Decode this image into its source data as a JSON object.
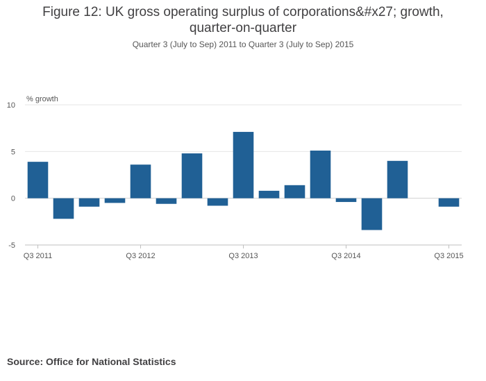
{
  "title_line1": "Figure 12: UK gross operating surplus of corporations&#x27; growth,",
  "title_line2": "quarter-on-quarter",
  "subtitle": "Quarter 3 (July to Sep) 2011 to Quarter 3 (July to Sep) 2015",
  "source": "Source: Office for National Statistics",
  "colors": {
    "bar": "#206095",
    "grid": "#e6e6e6",
    "axis": "#bfbfbf"
  },
  "chart_data": {
    "type": "bar",
    "ylabel": "% growth",
    "xlabel": "",
    "ylim": [
      -5,
      10
    ],
    "yticks": [
      -5,
      0,
      5,
      10
    ],
    "grid": true,
    "categories": [
      "Q3 2011",
      "Q4 2011",
      "Q1 2012",
      "Q2 2012",
      "Q3 2012",
      "Q4 2012",
      "Q1 2013",
      "Q2 2013",
      "Q3 2013",
      "Q4 2013",
      "Q1 2014",
      "Q2 2014",
      "Q3 2014",
      "Q4 2014",
      "Q1 2015",
      "Q2 2015",
      "Q3 2015"
    ],
    "tick_labels": [
      "Q3 2011",
      "Q3 2012",
      "Q3 2013",
      "Q3 2014",
      "Q3 2015"
    ],
    "series": [
      {
        "name": "% growth",
        "values": [
          3.9,
          -2.2,
          -0.9,
          -0.5,
          3.6,
          -0.6,
          4.8,
          -0.8,
          7.1,
          0.8,
          1.4,
          5.1,
          -0.4,
          -3.4,
          4.0,
          0.0,
          -0.9
        ]
      }
    ]
  }
}
